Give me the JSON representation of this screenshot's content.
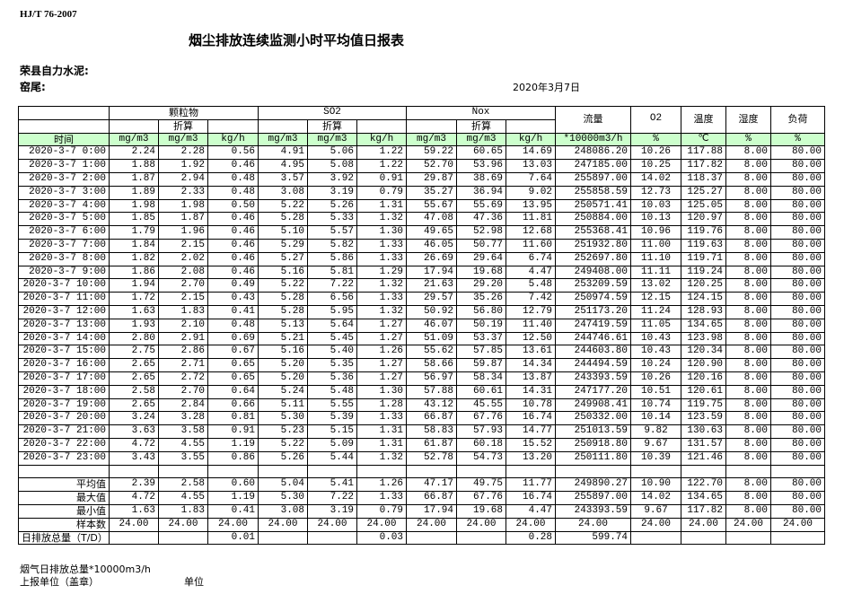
{
  "standard": "HJ/T  76-2007",
  "title": "烟尘排放连续监测小时平均值日报表",
  "company": "荣县自力水泥:",
  "kiln": "窑尾:",
  "date": "2020年3月7日",
  "header": {
    "particulate": "颗粒物",
    "so2": "SO2",
    "nox": "Nox",
    "converted": "折算",
    "flow": "流量",
    "o2": "O2",
    "temp": "温度",
    "humidity": "湿度",
    "load": "负荷",
    "time": "时间",
    "units": [
      "mg/m3",
      "mg/m3",
      "kg/h",
      "mg/m3",
      "mg/m3",
      "kg/h",
      "mg/m3",
      "mg/m3",
      "kg/h",
      "*10000m3/h",
      "%",
      "℃",
      "%",
      "%"
    ]
  },
  "rows": [
    [
      "2020-3-7 0:00",
      "2.24",
      "2.28",
      "0.56",
      "4.91",
      "5.06",
      "1.22",
      "59.22",
      "60.65",
      "14.69",
      "248086.20",
      "10.26",
      "117.88",
      "8.00",
      "80.00"
    ],
    [
      "2020-3-7 1:00",
      "1.88",
      "1.92",
      "0.46",
      "4.95",
      "5.08",
      "1.22",
      "52.70",
      "53.96",
      "13.03",
      "247185.00",
      "10.25",
      "117.82",
      "8.00",
      "80.00"
    ],
    [
      "2020-3-7 2:00",
      "1.87",
      "2.94",
      "0.48",
      "3.57",
      "3.92",
      "0.91",
      "29.87",
      "38.69",
      "7.64",
      "255897.00",
      "14.02",
      "118.37",
      "8.00",
      "80.00"
    ],
    [
      "2020-3-7 3:00",
      "1.89",
      "2.33",
      "0.48",
      "3.08",
      "3.19",
      "0.79",
      "35.27",
      "36.94",
      "9.02",
      "255858.59",
      "12.73",
      "125.27",
      "8.00",
      "80.00"
    ],
    [
      "2020-3-7 4:00",
      "1.98",
      "1.98",
      "0.50",
      "5.22",
      "5.26",
      "1.31",
      "55.67",
      "55.69",
      "13.95",
      "250571.41",
      "10.03",
      "125.05",
      "8.00",
      "80.00"
    ],
    [
      "2020-3-7 5:00",
      "1.85",
      "1.87",
      "0.46",
      "5.28",
      "5.33",
      "1.32",
      "47.08",
      "47.36",
      "11.81",
      "250884.00",
      "10.13",
      "120.97",
      "8.00",
      "80.00"
    ],
    [
      "2020-3-7 6:00",
      "1.79",
      "1.96",
      "0.46",
      "5.10",
      "5.57",
      "1.30",
      "49.65",
      "52.98",
      "12.68",
      "255368.41",
      "10.96",
      "119.76",
      "8.00",
      "80.00"
    ],
    [
      "2020-3-7 7:00",
      "1.84",
      "2.15",
      "0.46",
      "5.29",
      "5.82",
      "1.33",
      "46.05",
      "50.77",
      "11.60",
      "251932.80",
      "11.00",
      "119.63",
      "8.00",
      "80.00"
    ],
    [
      "2020-3-7 8:00",
      "1.82",
      "2.02",
      "0.46",
      "5.27",
      "5.86",
      "1.33",
      "26.69",
      "29.64",
      "6.74",
      "252697.80",
      "11.10",
      "119.71",
      "8.00",
      "80.00"
    ],
    [
      "2020-3-7 9:00",
      "1.86",
      "2.08",
      "0.46",
      "5.16",
      "5.81",
      "1.29",
      "17.94",
      "19.68",
      "4.47",
      "249408.00",
      "11.11",
      "119.24",
      "8.00",
      "80.00"
    ],
    [
      "2020-3-7 10:00",
      "1.94",
      "2.70",
      "0.49",
      "5.22",
      "7.22",
      "1.32",
      "21.63",
      "29.20",
      "5.48",
      "253209.59",
      "13.02",
      "120.25",
      "8.00",
      "80.00"
    ],
    [
      "2020-3-7 11:00",
      "1.72",
      "2.15",
      "0.43",
      "5.28",
      "6.56",
      "1.33",
      "29.57",
      "35.26",
      "7.42",
      "250974.59",
      "12.15",
      "124.15",
      "8.00",
      "80.00"
    ],
    [
      "2020-3-7 12:00",
      "1.63",
      "1.83",
      "0.41",
      "5.28",
      "5.95",
      "1.32",
      "50.92",
      "56.80",
      "12.79",
      "251173.20",
      "11.24",
      "128.93",
      "8.00",
      "80.00"
    ],
    [
      "2020-3-7 13:00",
      "1.93",
      "2.10",
      "0.48",
      "5.13",
      "5.64",
      "1.27",
      "46.07",
      "50.19",
      "11.40",
      "247419.59",
      "11.05",
      "134.65",
      "8.00",
      "80.00"
    ],
    [
      "2020-3-7 14:00",
      "2.80",
      "2.91",
      "0.69",
      "5.21",
      "5.45",
      "1.27",
      "51.09",
      "53.37",
      "12.50",
      "244746.61",
      "10.43",
      "123.98",
      "8.00",
      "80.00"
    ],
    [
      "2020-3-7 15:00",
      "2.75",
      "2.86",
      "0.67",
      "5.16",
      "5.40",
      "1.26",
      "55.62",
      "57.85",
      "13.61",
      "244603.80",
      "10.43",
      "120.34",
      "8.00",
      "80.00"
    ],
    [
      "2020-3-7 16:00",
      "2.65",
      "2.71",
      "0.65",
      "5.20",
      "5.35",
      "1.27",
      "58.66",
      "59.87",
      "14.34",
      "244494.59",
      "10.24",
      "120.90",
      "8.00",
      "80.00"
    ],
    [
      "2020-3-7 17:00",
      "2.65",
      "2.72",
      "0.65",
      "5.20",
      "5.36",
      "1.27",
      "56.97",
      "58.34",
      "13.87",
      "243393.59",
      "10.26",
      "120.16",
      "8.00",
      "80.00"
    ],
    [
      "2020-3-7 18:00",
      "2.58",
      "2.70",
      "0.64",
      "5.24",
      "5.48",
      "1.30",
      "57.88",
      "60.61",
      "14.31",
      "247177.20",
      "10.51",
      "120.61",
      "8.00",
      "80.00"
    ],
    [
      "2020-3-7 19:00",
      "2.65",
      "2.84",
      "0.66",
      "5.11",
      "5.55",
      "1.28",
      "43.12",
      "45.55",
      "10.78",
      "249908.41",
      "10.74",
      "119.75",
      "8.00",
      "80.00"
    ],
    [
      "2020-3-7 20:00",
      "3.24",
      "3.28",
      "0.81",
      "5.30",
      "5.39",
      "1.33",
      "66.87",
      "67.76",
      "16.74",
      "250332.00",
      "10.14",
      "123.59",
      "8.00",
      "80.00"
    ],
    [
      "2020-3-7 21:00",
      "3.63",
      "3.58",
      "0.91",
      "5.23",
      "5.15",
      "1.31",
      "58.83",
      "57.93",
      "14.77",
      "251013.59",
      "9.82",
      "130.63",
      "8.00",
      "80.00"
    ],
    [
      "2020-3-7 22:00",
      "4.72",
      "4.55",
      "1.19",
      "5.22",
      "5.09",
      "1.31",
      "61.87",
      "60.18",
      "15.52",
      "250918.80",
      "9.67",
      "131.57",
      "8.00",
      "80.00"
    ],
    [
      "2020-3-7 23:00",
      "3.43",
      "3.55",
      "0.86",
      "5.26",
      "5.44",
      "1.32",
      "52.78",
      "54.73",
      "13.20",
      "250111.80",
      "10.39",
      "121.46",
      "8.00",
      "80.00"
    ]
  ],
  "summary": [
    [
      "平均值",
      "2.39",
      "2.58",
      "0.60",
      "5.04",
      "5.41",
      "1.26",
      "47.17",
      "49.75",
      "11.77",
      "249890.27",
      "10.90",
      "122.70",
      "8.00",
      "80.00"
    ],
    [
      "最大值",
      "4.72",
      "4.55",
      "1.19",
      "5.30",
      "7.22",
      "1.33",
      "66.87",
      "67.76",
      "16.74",
      "255897.00",
      "14.02",
      "134.65",
      "8.00",
      "80.00"
    ],
    [
      "最小值",
      "1.63",
      "1.83",
      "0.41",
      "3.08",
      "3.19",
      "0.79",
      "17.94",
      "19.68",
      "4.47",
      "243393.59",
      "9.67",
      "117.82",
      "8.00",
      "80.00"
    ],
    [
      "样本数",
      "24.00",
      "24.00",
      "24.00",
      "24.00",
      "24.00",
      "24.00",
      "24.00",
      "24.00",
      "24.00",
      "24.00",
      "24.00",
      "24.00",
      "24.00",
      "24.00"
    ],
    [
      "日排放总量（T/D）",
      "",
      "",
      "0.01",
      "",
      "",
      "0.03",
      "",
      "",
      "0.28",
      "599.74",
      "",
      "",
      "",
      ""
    ]
  ],
  "footer": {
    "flue_total": "烟气日排放总量*10000m3/h",
    "reporter": "上报单位（盖章）",
    "unit": "单位"
  }
}
